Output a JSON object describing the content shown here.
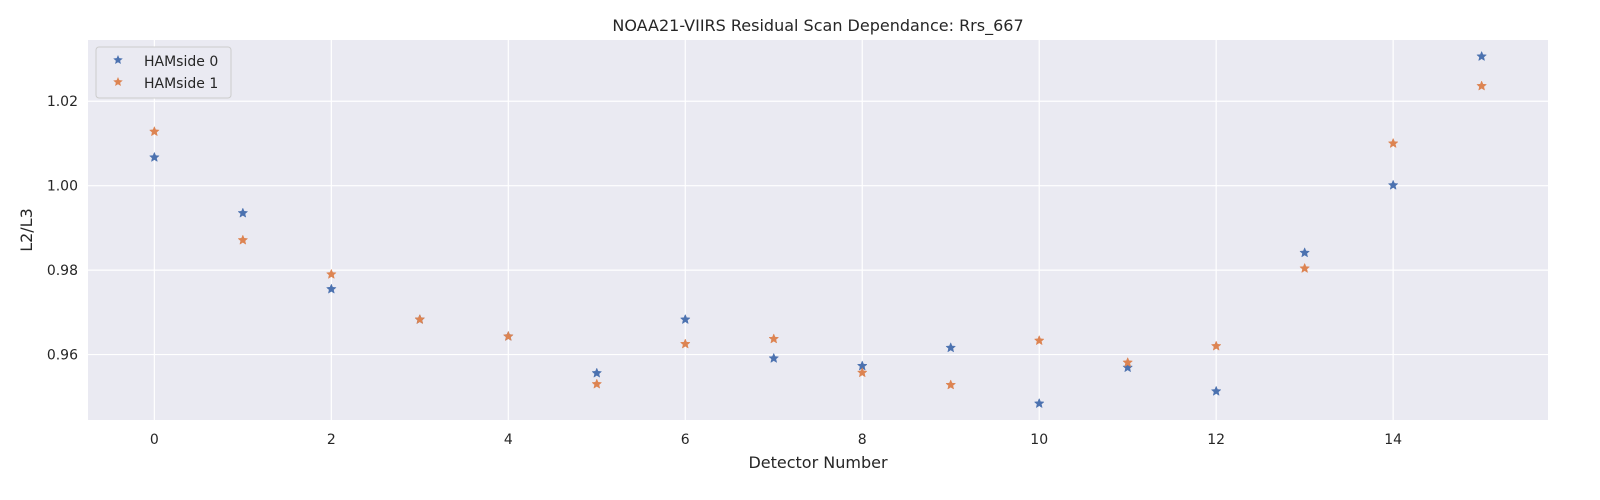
{
  "chart_data": {
    "type": "scatter",
    "title": "NOAA21-VIIRS Residual Scan Dependance: Rrs_667",
    "xlabel": "Detector Number",
    "ylabel": "L2/L3",
    "xlim": [
      -0.75,
      15.75
    ],
    "ylim": [
      0.9445,
      1.0345
    ],
    "xticks": [
      0,
      2,
      4,
      6,
      8,
      10,
      12,
      14
    ],
    "yticks": [
      0.96,
      0.98,
      1.0,
      1.02
    ],
    "ytick_labels": [
      "0.96",
      "0.98",
      "1.00",
      "1.02"
    ],
    "grid": true,
    "legend_position": "top-left",
    "x": [
      0,
      1,
      2,
      3,
      4,
      5,
      6,
      7,
      8,
      9,
      10,
      11,
      12,
      13,
      14,
      15
    ],
    "series": [
      {
        "name": "HAMside 0",
        "color": "#4c72b0",
        "marker": "star",
        "values": [
          1.0067,
          0.9935,
          0.9755,
          0.9683,
          0.9643,
          0.9556,
          0.9683,
          0.9591,
          0.9573,
          0.9616,
          0.9484,
          0.9569,
          0.9513,
          0.9841,
          1.0001,
          1.0306
        ]
      },
      {
        "name": "HAMside 1",
        "color": "#dd8452",
        "marker": "star",
        "values": [
          1.0128,
          0.9871,
          0.979,
          0.9683,
          0.9643,
          0.953,
          0.9625,
          0.9637,
          0.9557,
          0.9528,
          0.9633,
          0.9581,
          0.962,
          0.9804,
          1.01,
          1.0236
        ]
      }
    ]
  }
}
